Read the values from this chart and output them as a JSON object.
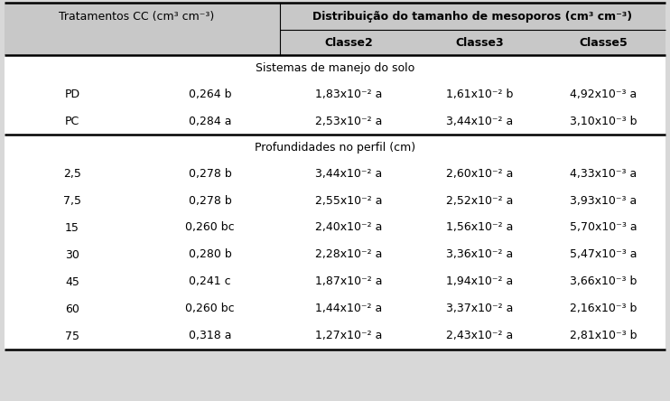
{
  "header_left": "Tratamentos CC (cm³ cm⁻³)",
  "header_right": "Distribuição do tamanho de mesoporos (cm³ cm⁻³)",
  "classe_labels": [
    "Classe2",
    "Classe3",
    "Classe5"
  ],
  "section1_label": "Sistemas de manejo do solo",
  "section2_label": "Profundidades no perfil (cm)",
  "rows_section1": [
    [
      "PD",
      "0,264 b",
      "1,83x10⁻² a",
      "1,61x10⁻² b",
      "4,92x10⁻³ a"
    ],
    [
      "PC",
      "0,284 a",
      "2,53x10⁻² a",
      "3,44x10⁻² a",
      "3,10x10⁻³ b"
    ]
  ],
  "rows_section2": [
    [
      "2,5",
      "0,278 b",
      "3,44x10⁻² a",
      "2,60x10⁻² a",
      "4,33x10⁻³ a"
    ],
    [
      "7,5",
      "0,278 b",
      "2,55x10⁻² a",
      "2,52x10⁻² a",
      "3,93x10⁻³ a"
    ],
    [
      "15",
      "0,260 bc",
      "2,40x10⁻² a",
      "1,56x10⁻² a",
      "5,70x10⁻³ a"
    ],
    [
      "30",
      "0,280 b",
      "2,28x10⁻² a",
      "3,36x10⁻² a",
      "5,47x10⁻³ a"
    ],
    [
      "45",
      "0,241 c",
      "1,87x10⁻² a",
      "1,94x10⁻² a",
      "3,66x10⁻³ b"
    ],
    [
      "60",
      "0,260 bc",
      "1,44x10⁻² a",
      "3,37x10⁻² a",
      "2,16x10⁻³ b"
    ],
    [
      "75",
      "0,318 a",
      "1,27x10⁻² a",
      "2,43x10⁻² a",
      "2,81x10⁻³ b"
    ]
  ],
  "bg_color": "#d8d8d8",
  "header_bg": "#c8c8c8",
  "body_bg": "#ffffff",
  "lw_thick": 1.8,
  "lw_thin": 0.8,
  "fontsize": 9.0,
  "figw": 7.42,
  "figh": 4.44,
  "dpi": 100
}
